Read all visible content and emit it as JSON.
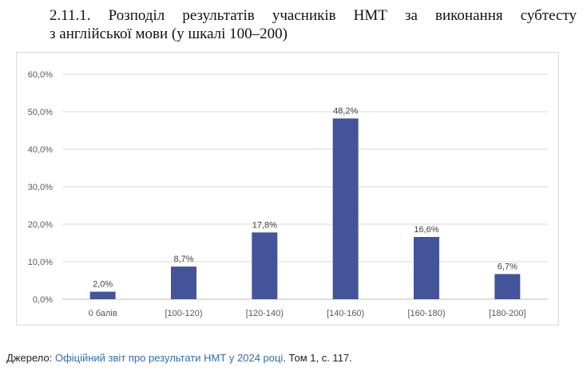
{
  "heading": {
    "line1": "2.11.1. Розподіл результатів учасників НМТ за виконання субтесту",
    "line2": "з англійської мови (у шкалі 100–200)"
  },
  "chart_data": {
    "type": "bar",
    "categories": [
      "0 балів",
      "[100-120)",
      "[120-140)",
      "[140-160)",
      "[160-180)",
      "[180-200]"
    ],
    "values": [
      2.0,
      8.7,
      17.8,
      48.2,
      16.6,
      6.7
    ],
    "value_labels": [
      "2,0%",
      "8,7%",
      "17,8%",
      "48,2%",
      "16,6%",
      "6,7%"
    ],
    "yticks": [
      "0,0%",
      "10,0%",
      "20,0%",
      "30,0%",
      "40,0%",
      "50,0%",
      "60,0%"
    ],
    "ylim": [
      0,
      60
    ],
    "grid": true,
    "bar_color": "#44549a"
  },
  "source": {
    "prefix": "Джерело: ",
    "link_text": "Офіційний звіт про результати НМТ у 2024 році",
    "suffix": ". Том 1, с. 117."
  }
}
